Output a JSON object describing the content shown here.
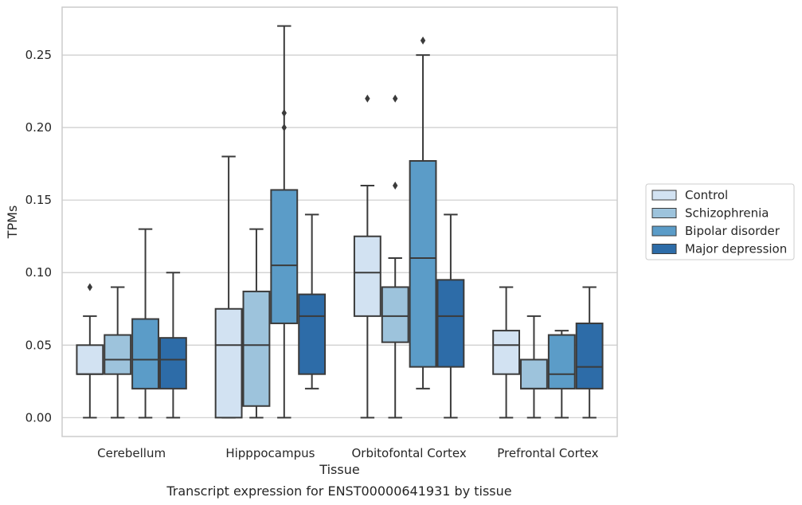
{
  "chart_data": {
    "type": "box",
    "xlabel": "Tissue",
    "ylabel": "TPMs",
    "caption": "Transcript expression for ENST00000641931 by tissue",
    "ylim": [
      -0.013,
      0.283
    ],
    "yticks": [
      0.0,
      0.05,
      0.1,
      0.15,
      0.2,
      0.25
    ],
    "ytick_labels": [
      "0.00",
      "0.05",
      "0.10",
      "0.15",
      "0.20",
      "0.25"
    ],
    "grid": true,
    "legend_position": "right",
    "categories": [
      "Cerebellum",
      "Hipppocampus",
      "Orbitofontal Cortex",
      "Prefrontal Cortex"
    ],
    "series": [
      {
        "name": "Control",
        "color": "#d2e2f2",
        "boxes": [
          {
            "whisker_low": 0.0,
            "q1": 0.03,
            "median": 0.03,
            "q3": 0.05,
            "whisker_high": 0.07,
            "outliers": [
              0.09
            ]
          },
          {
            "whisker_low": 0.0,
            "q1": 0.0,
            "median": 0.05,
            "q3": 0.075,
            "whisker_high": 0.18,
            "outliers": []
          },
          {
            "whisker_low": 0.0,
            "q1": 0.07,
            "median": 0.1,
            "q3": 0.125,
            "whisker_high": 0.16,
            "outliers": [
              0.22
            ]
          },
          {
            "whisker_low": 0.0,
            "q1": 0.03,
            "median": 0.05,
            "q3": 0.06,
            "whisker_high": 0.09,
            "outliers": []
          }
        ]
      },
      {
        "name": "Schizophrenia",
        "color": "#9dc3dc",
        "boxes": [
          {
            "whisker_low": 0.0,
            "q1": 0.03,
            "median": 0.04,
            "q3": 0.057,
            "whisker_high": 0.09,
            "outliers": []
          },
          {
            "whisker_low": 0.0,
            "q1": 0.008,
            "median": 0.05,
            "q3": 0.087,
            "whisker_high": 0.13,
            "outliers": []
          },
          {
            "whisker_low": 0.0,
            "q1": 0.052,
            "median": 0.07,
            "q3": 0.09,
            "whisker_high": 0.11,
            "outliers": [
              0.16,
              0.22
            ]
          },
          {
            "whisker_low": 0.0,
            "q1": 0.02,
            "median": 0.02,
            "q3": 0.04,
            "whisker_high": 0.07,
            "outliers": []
          }
        ]
      },
      {
        "name": "Bipolar disorder",
        "color": "#5b9cc8",
        "boxes": [
          {
            "whisker_low": 0.0,
            "q1": 0.02,
            "median": 0.04,
            "q3": 0.068,
            "whisker_high": 0.13,
            "outliers": []
          },
          {
            "whisker_low": 0.0,
            "q1": 0.065,
            "median": 0.105,
            "q3": 0.157,
            "whisker_high": 0.27,
            "outliers": [
              0.2,
              0.21
            ]
          },
          {
            "whisker_low": 0.02,
            "q1": 0.035,
            "median": 0.11,
            "q3": 0.177,
            "whisker_high": 0.25,
            "outliers": [
              0.26
            ]
          },
          {
            "whisker_low": 0.0,
            "q1": 0.02,
            "median": 0.03,
            "q3": 0.057,
            "whisker_high": 0.06,
            "outliers": []
          }
        ]
      },
      {
        "name": "Major depression",
        "color": "#2d6ca8",
        "boxes": [
          {
            "whisker_low": 0.0,
            "q1": 0.02,
            "median": 0.04,
            "q3": 0.055,
            "whisker_high": 0.1,
            "outliers": []
          },
          {
            "whisker_low": 0.02,
            "q1": 0.03,
            "median": 0.07,
            "q3": 0.085,
            "whisker_high": 0.14,
            "outliers": []
          },
          {
            "whisker_low": 0.0,
            "q1": 0.035,
            "median": 0.07,
            "q3": 0.095,
            "whisker_high": 0.14,
            "outliers": []
          },
          {
            "whisker_low": 0.0,
            "q1": 0.02,
            "median": 0.035,
            "q3": 0.065,
            "whisker_high": 0.09,
            "outliers": []
          }
        ]
      }
    ]
  }
}
